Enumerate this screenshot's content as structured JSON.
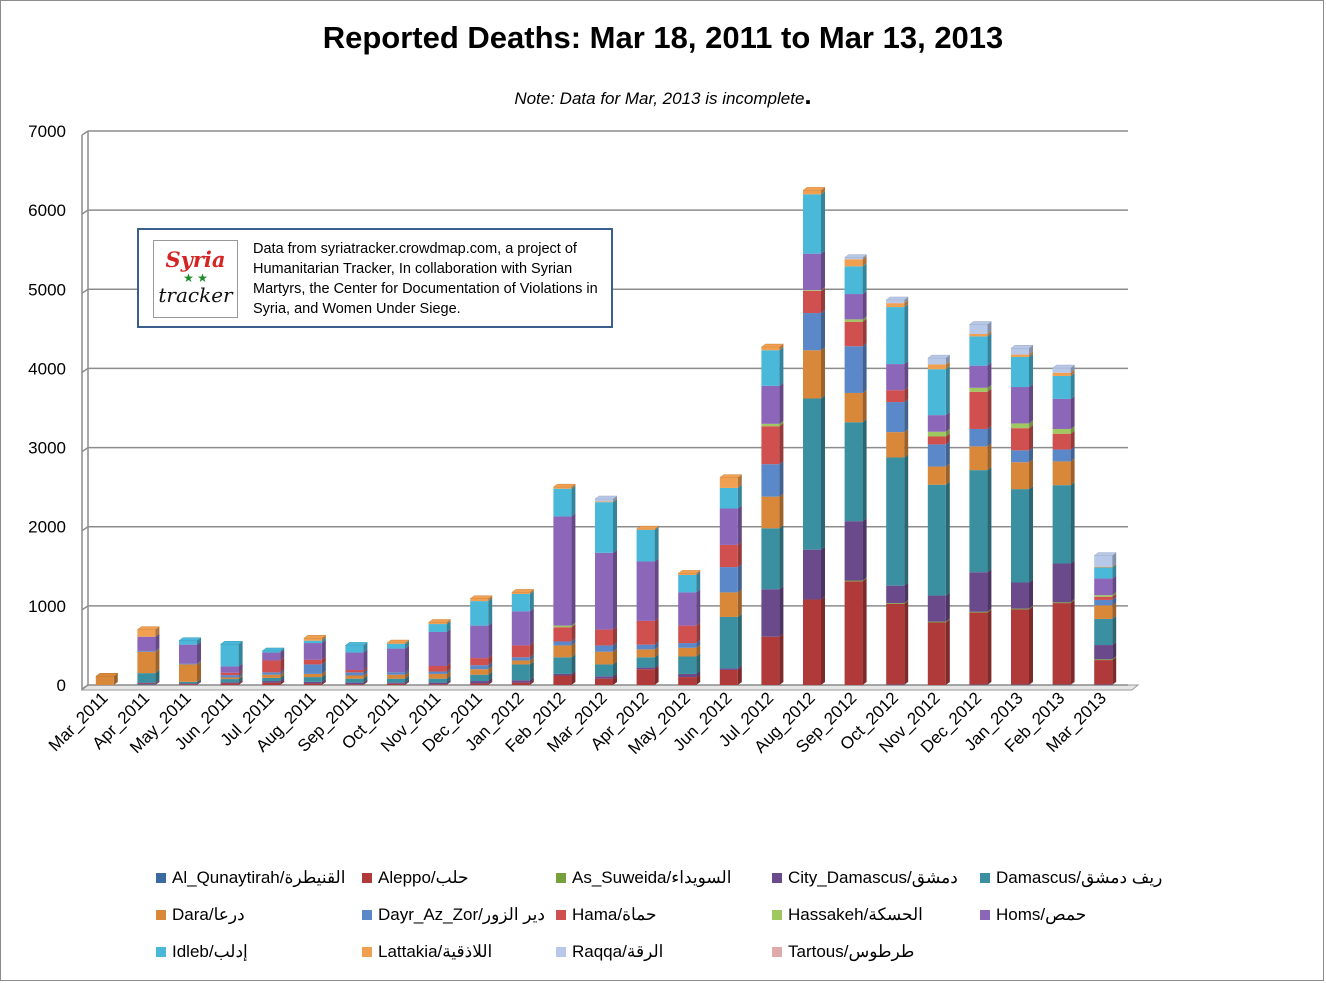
{
  "chart_data": {
    "type": "bar",
    "stacked": true,
    "title": "Reported Deaths: Mar 18, 2011 to Mar 13, 2013",
    "note": "Note: Data for Mar, 2013 is incomplete",
    "note_mark": ".",
    "xlabel": "",
    "ylabel": "",
    "ylim": [
      0,
      7000
    ],
    "yticks": [
      0,
      1000,
      2000,
      3000,
      4000,
      5000,
      6000,
      7000
    ],
    "grid": true,
    "legend_position": "bottom",
    "categories": [
      "Mar_2011",
      "Apr_2011",
      "May_2011",
      "Jun_2011",
      "Jul_2011",
      "Aug_2011",
      "Sep_2011",
      "Oct_2011",
      "Nov_2011",
      "Dec_2011",
      "Jan_2012",
      "Feb_2012",
      "Mar_2012",
      "Apr_2012",
      "May_2012",
      "Jun_2012",
      "Jul_2012",
      "Aug_2012",
      "Sep_2012",
      "Oct_2012",
      "Nov_2012",
      "Dec_2012",
      "Jan_2013",
      "Feb_2013",
      "Mar_2013"
    ],
    "series": [
      {
        "name": "Al_Qunaytirah/القنيطرة",
        "color": "#3b6aa0",
        "values": [
          0,
          10,
          0,
          0,
          0,
          0,
          0,
          0,
          0,
          0,
          0,
          0,
          0,
          0,
          0,
          0,
          0,
          0,
          0,
          5,
          0,
          5,
          5,
          5,
          5
        ]
      },
      {
        "name": "Aleppo/حلب",
        "color": "#b03a3a",
        "values": [
          0,
          10,
          10,
          20,
          30,
          20,
          10,
          15,
          10,
          20,
          30,
          120,
          80,
          200,
          100,
          190,
          610,
          1080,
          1310,
          1020,
          790,
          910,
          950,
          1030,
          310
        ]
      },
      {
        "name": "As_Suweida/السويداء",
        "color": "#77a03a",
        "values": [
          0,
          0,
          0,
          0,
          0,
          0,
          0,
          0,
          0,
          0,
          0,
          0,
          0,
          0,
          0,
          0,
          0,
          0,
          10,
          10,
          10,
          10,
          10,
          10,
          10
        ]
      },
      {
        "name": "City_Damascus/دمشق",
        "color": "#6a4a8a",
        "values": [
          0,
          10,
          10,
          15,
          20,
          20,
          20,
          15,
          20,
          30,
          30,
          20,
          30,
          20,
          40,
          20,
          600,
          630,
          750,
          220,
          330,
          500,
          330,
          490,
          180
        ]
      },
      {
        "name": "Damascus/ريف دمشق",
        "color": "#3a8fa0",
        "values": [
          0,
          120,
          20,
          40,
          40,
          60,
          50,
          50,
          50,
          80,
          200,
          210,
          150,
          130,
          220,
          650,
          770,
          1910,
          1250,
          1620,
          1400,
          1290,
          1180,
          990,
          330
        ]
      },
      {
        "name": "Dara/درعا",
        "color": "#d9883a",
        "values": [
          110,
          270,
          220,
          20,
          40,
          40,
          40,
          50,
          60,
          70,
          50,
          150,
          160,
          100,
          110,
          310,
          400,
          610,
          370,
          320,
          230,
          300,
          340,
          300,
          170
        ]
      },
      {
        "name": "Dayr_Az_Zor/دير الزور",
        "color": "#5b88c8",
        "values": [
          0,
          10,
          10,
          30,
          30,
          120,
          40,
          30,
          30,
          50,
          40,
          50,
          80,
          60,
          60,
          320,
          410,
          470,
          590,
          380,
          280,
          220,
          150,
          150,
          70
        ]
      },
      {
        "name": "Hama/حماة",
        "color": "#d05050",
        "values": [
          0,
          0,
          0,
          30,
          150,
          60,
          30,
          0,
          70,
          90,
          150,
          180,
          200,
          300,
          220,
          280,
          480,
          280,
          310,
          150,
          100,
          470,
          280,
          200,
          40
        ]
      },
      {
        "name": "Hassakeh/الحسكة",
        "color": "#a0c860",
        "values": [
          0,
          0,
          0,
          0,
          0,
          0,
          0,
          0,
          0,
          0,
          0,
          20,
          0,
          0,
          0,
          0,
          30,
          10,
          30,
          0,
          60,
          50,
          60,
          60,
          20
        ]
      },
      {
        "name": "Homs/حمص",
        "color": "#8c66b8",
        "values": [
          0,
          180,
          240,
          80,
          100,
          210,
          220,
          300,
          430,
          410,
          430,
          1380,
          970,
          750,
          420,
          460,
          480,
          460,
          320,
          330,
          210,
          280,
          460,
          380,
          210
        ]
      },
      {
        "name": "Idleb/إدلب",
        "color": "#4ab8d8",
        "values": [
          0,
          0,
          50,
          280,
          20,
          30,
          90,
          60,
          100,
          310,
          220,
          350,
          640,
          400,
          220,
          260,
          450,
          750,
          350,
          720,
          580,
          370,
          380,
          290,
          140
        ]
      },
      {
        "name": "Lattakia/اللاذقية",
        "color": "#f0a050",
        "values": [
          0,
          90,
          0,
          0,
          0,
          30,
          0,
          10,
          20,
          30,
          20,
          20,
          10,
          10,
          20,
          130,
          40,
          50,
          90,
          50,
          60,
          30,
          30,
          40,
          10
        ]
      },
      {
        "name": "Raqqa/الرقة",
        "color": "#b8c8e8",
        "values": [
          0,
          0,
          0,
          0,
          0,
          0,
          0,
          0,
          0,
          0,
          0,
          0,
          30,
          0,
          0,
          0,
          0,
          0,
          20,
          40,
          80,
          120,
          80,
          60,
          140
        ]
      },
      {
        "name": "Tartous/طرطوس",
        "color": "#e0aaaa",
        "values": [
          0,
          0,
          0,
          0,
          0,
          0,
          0,
          0,
          0,
          0,
          0,
          0,
          0,
          0,
          0,
          0,
          0,
          0,
          0,
          0,
          0,
          0,
          0,
          0,
          0
        ]
      }
    ]
  },
  "info_box": {
    "logo_line1": "Syria",
    "logo_stars": "★ ★",
    "logo_line2": "tracker",
    "text": "Data from syriatracker.crowdmap.com, a project of Humanitarian Tracker, In collaboration with Syrian Martyrs, the Center for Documentation of Violations in Syria, and Women Under Siege."
  }
}
